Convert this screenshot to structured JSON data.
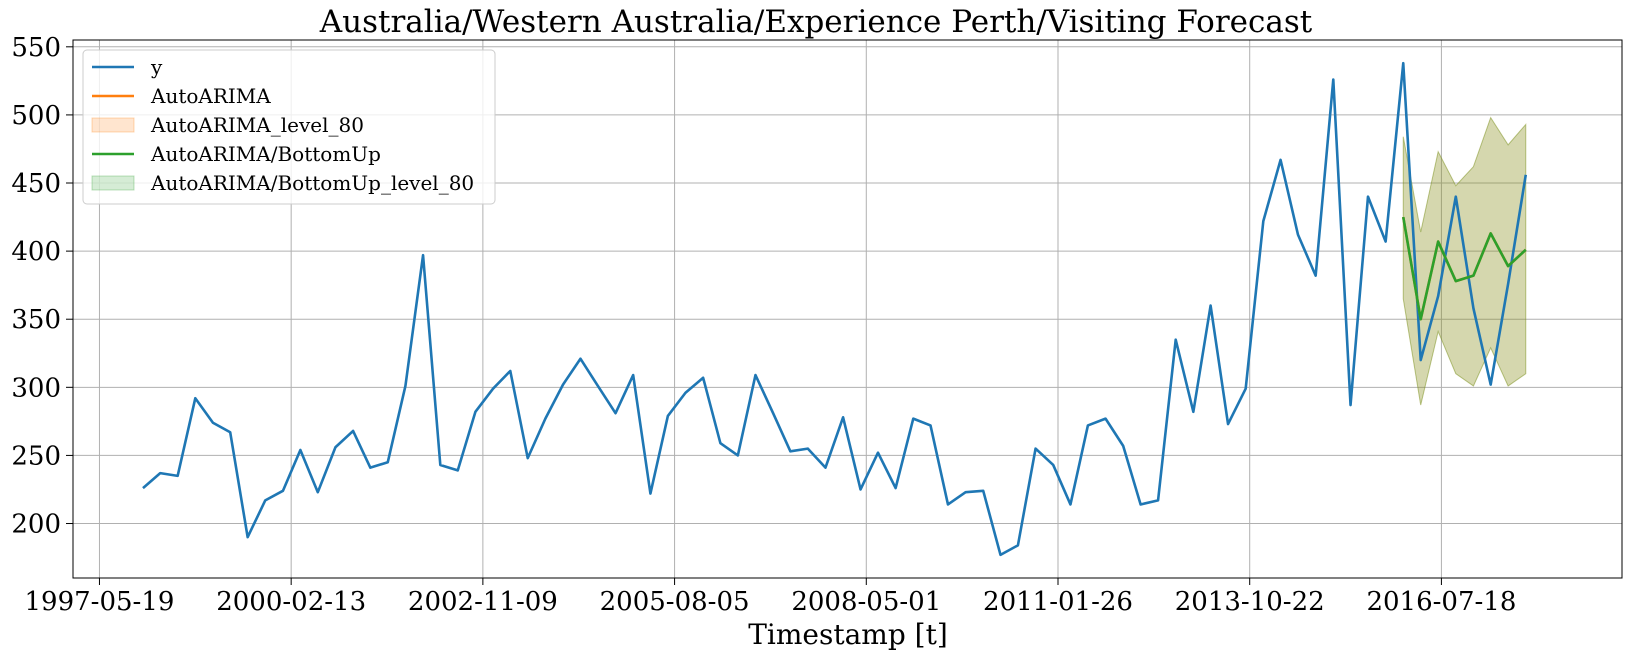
{
  "chart_data": {
    "type": "line",
    "title": "Australia/Western Australia/Experience Perth/Visiting Forecast",
    "xlabel": "Timestamp [t]",
    "ylabel": "",
    "x_ticks": [
      "1997-05-19",
      "2000-02-13",
      "2002-11-09",
      "2005-08-05",
      "2008-05-01",
      "2011-01-26",
      "2013-10-22",
      "2016-07-18"
    ],
    "y_ticks": [
      200,
      250,
      300,
      350,
      400,
      450,
      500,
      550
    ],
    "xlim": [
      "1997-01-01",
      "2019-02-15"
    ],
    "ylim": [
      160,
      555
    ],
    "grid": true,
    "legend_position": "upper-left",
    "legend": [
      {
        "label": "y",
        "kind": "line",
        "color": "#1f77b4"
      },
      {
        "label": "AutoARIMA",
        "kind": "line",
        "color": "#ff7f0e"
      },
      {
        "label": "AutoARIMA_level_80",
        "kind": "band",
        "color": "#ff7f0e"
      },
      {
        "label": "AutoARIMA/BottomUp",
        "kind": "line",
        "color": "#2ca02c"
      },
      {
        "label": "AutoARIMA/BottomUp_level_80",
        "kind": "band",
        "color": "#2ca02c"
      }
    ],
    "series": [
      {
        "name": "y",
        "color": "#1f77b4",
        "x": [
          "1998-01-01",
          "1998-04-01",
          "1998-07-01",
          "1998-10-01",
          "1999-01-01",
          "1999-04-01",
          "1999-07-01",
          "1999-10-01",
          "2000-01-01",
          "2000-04-01",
          "2000-07-01",
          "2000-10-01",
          "2001-01-01",
          "2001-04-01",
          "2001-07-01",
          "2001-10-01",
          "2002-01-01",
          "2002-04-01",
          "2002-07-01",
          "2002-10-01",
          "2003-01-01",
          "2003-04-01",
          "2003-07-01",
          "2003-10-01",
          "2004-01-01",
          "2004-04-01",
          "2004-07-01",
          "2004-10-01",
          "2005-01-01",
          "2005-04-01",
          "2005-07-01",
          "2005-10-01",
          "2006-01-01",
          "2006-04-01",
          "2006-07-01",
          "2006-10-01",
          "2007-01-01",
          "2007-04-01",
          "2007-07-01",
          "2007-10-01",
          "2008-01-01",
          "2008-04-01",
          "2008-07-01",
          "2008-10-01",
          "2009-01-01",
          "2009-04-01",
          "2009-07-01",
          "2009-10-01",
          "2010-01-01",
          "2010-04-01",
          "2010-07-01",
          "2010-10-01",
          "2011-01-01",
          "2011-04-01",
          "2011-07-01",
          "2011-10-01",
          "2012-01-01",
          "2012-04-01",
          "2012-07-01",
          "2012-10-01",
          "2013-01-01",
          "2013-04-01",
          "2013-07-01",
          "2013-10-01",
          "2014-01-01",
          "2014-04-01",
          "2014-07-01",
          "2014-10-01",
          "2015-01-01",
          "2015-04-01",
          "2015-07-01",
          "2015-10-01",
          "2016-01-01",
          "2016-04-01",
          "2016-07-01",
          "2016-10-01",
          "2017-01-01",
          "2017-04-01",
          "2017-07-01",
          "2017-10-01"
        ],
        "y": [
          226,
          237,
          235,
          292,
          274,
          267,
          190,
          217,
          224,
          254,
          223,
          256,
          268,
          241,
          245,
          301,
          397,
          243,
          239,
          282,
          299,
          312,
          248,
          277,
          302,
          321,
          301,
          281,
          309,
          222,
          279,
          296,
          307,
          259,
          250,
          309,
          281,
          253,
          255,
          241,
          278,
          225,
          252,
          226,
          277,
          272,
          214,
          223,
          224,
          177,
          184,
          255,
          243,
          214,
          272,
          277,
          257,
          214,
          217,
          335,
          282,
          360,
          273,
          299,
          422,
          467,
          412,
          382,
          526,
          287,
          440,
          407,
          538,
          320,
          367,
          440,
          358,
          302,
          376,
          456
        ]
      },
      {
        "name": "AutoARIMA",
        "color": "#ff7f0e",
        "x": [
          "2016-01-01",
          "2016-04-01",
          "2016-07-01",
          "2016-10-01",
          "2017-01-01",
          "2017-04-01",
          "2017-07-01",
          "2017-10-01"
        ],
        "y": [
          425,
          350,
          407,
          378,
          382,
          413,
          389,
          401
        ]
      },
      {
        "name": "AutoARIMA/BottomUp",
        "color": "#2ca02c",
        "x": [
          "2016-01-01",
          "2016-04-01",
          "2016-07-01",
          "2016-10-01",
          "2017-01-01",
          "2017-04-01",
          "2017-07-01",
          "2017-10-01"
        ],
        "y": [
          425,
          350,
          407,
          378,
          382,
          413,
          389,
          401
        ]
      }
    ],
    "bands": [
      {
        "name": "AutoARIMA_level_80",
        "color": "#ff7f0e",
        "x": [
          "2016-01-01",
          "2016-04-01",
          "2016-07-01",
          "2016-10-01",
          "2017-01-01",
          "2017-04-01",
          "2017-07-01",
          "2017-10-01"
        ],
        "lower": [
          365,
          287,
          341,
          310,
          301,
          329,
          301,
          310
        ],
        "upper": [
          484,
          414,
          473,
          448,
          462,
          498,
          478,
          493
        ]
      },
      {
        "name": "AutoARIMA/BottomUp_level_80",
        "color": "#2ca02c",
        "x": [
          "2016-01-01",
          "2016-04-01",
          "2016-07-01",
          "2016-10-01",
          "2017-01-01",
          "2017-04-01",
          "2017-07-01",
          "2017-10-01"
        ],
        "lower": [
          365,
          287,
          341,
          310,
          301,
          329,
          301,
          310
        ],
        "upper": [
          484,
          414,
          473,
          448,
          462,
          498,
          478,
          493
        ]
      }
    ]
  }
}
